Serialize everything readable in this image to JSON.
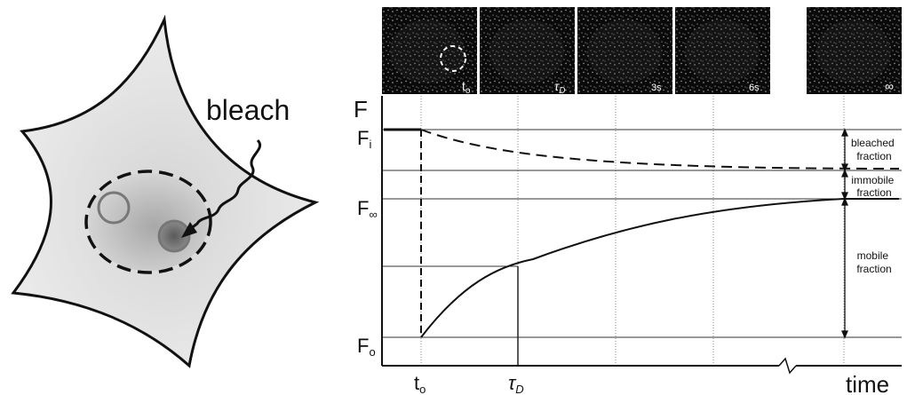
{
  "cell": {
    "bleach_label": "bleach"
  },
  "frames": [
    {
      "label": "t",
      "sub": "o"
    },
    {
      "label": "τ",
      "sub": "D"
    },
    {
      "label": "3s",
      "sub": ""
    },
    {
      "label": "6s",
      "sub": ""
    },
    {
      "label": "∞",
      "sub": ""
    }
  ],
  "plot": {
    "y_axis_label": "F",
    "x_axis_label": "time",
    "levels": {
      "fi": {
        "main": "F",
        "sub": "i"
      },
      "finf": {
        "main": "F",
        "sub": "∞"
      },
      "fo": {
        "main": "F",
        "sub": "o"
      }
    },
    "x_ticks": {
      "to": {
        "main": "t",
        "sub": "o"
      },
      "tau": {
        "main": "τ",
        "sub": "D"
      }
    },
    "annotations": {
      "bleached": [
        "bleached",
        "fraction"
      ],
      "immobile": [
        "immobile",
        "fraction"
      ],
      "mobile": [
        "mobile",
        "fraction"
      ]
    }
  },
  "colors": {
    "cell_fill": "#e6e6e6",
    "cell_outline": "#111111",
    "spot_ring": "#777777",
    "frame_bg": "#0a0a0a"
  }
}
